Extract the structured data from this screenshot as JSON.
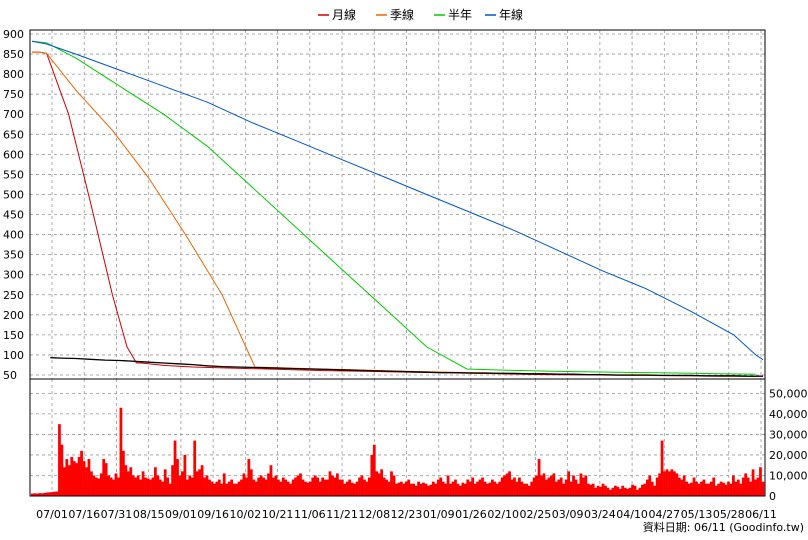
{
  "chart_data": {
    "type": "line",
    "legend": {
      "placement": "top-center",
      "items": [
        {
          "name": "月線",
          "color": "#cc0000"
        },
        {
          "name": "季線",
          "color": "#ee6600"
        },
        {
          "name": "半年",
          "color": "#00cc00"
        },
        {
          "name": "年線",
          "color": "#0055cc"
        }
      ]
    },
    "x_tick_labels": [
      "07/01",
      "07/16",
      "07/31",
      "08/15",
      "09/01",
      "09/16",
      "10/02",
      "10/21",
      "11/06",
      "11/21",
      "12/08",
      "12/23",
      "01/09",
      "01/26",
      "02/10",
      "02/25",
      "03/09",
      "03/24",
      "04/10",
      "04/27",
      "05/13",
      "05/28",
      "06/11"
    ],
    "price_axis": {
      "ticks": [
        "900",
        "850",
        "800",
        "750",
        "700",
        "650",
        "600",
        "550",
        "500",
        "450",
        "400",
        "350",
        "300",
        "250",
        "200",
        "150",
        "100",
        "50"
      ],
      "ylim": [
        40,
        910
      ],
      "grid": true
    },
    "volume_axis": {
      "ticks": [
        "50,000",
        "40,000",
        "30,000",
        "20,000",
        "10,000",
        "0"
      ],
      "ylim": [
        0,
        57000
      ],
      "grid": true
    },
    "series": [
      {
        "name": "月線",
        "color": "#cc0000",
        "points": [
          [
            0,
            855
          ],
          [
            1,
            855
          ],
          [
            2,
            852
          ],
          [
            5,
            700
          ],
          [
            8,
            480
          ],
          [
            11,
            250
          ],
          [
            13,
            120
          ],
          [
            14.3,
            80
          ],
          [
            15,
            80
          ],
          [
            18,
            74
          ],
          [
            22,
            70
          ],
          [
            28,
            67
          ],
          [
            34,
            64
          ],
          [
            40,
            61
          ],
          [
            46,
            59
          ],
          [
            52,
            57
          ],
          [
            58,
            55
          ],
          [
            64,
            53
          ],
          [
            70,
            51
          ],
          [
            76,
            50
          ],
          [
            82,
            49
          ],
          [
            88,
            48
          ],
          [
            94,
            47
          ],
          [
            99,
            47
          ]
        ]
      },
      {
        "name": "季線",
        "color": "#ee6600",
        "points": [
          [
            0,
            855
          ],
          [
            1,
            855
          ],
          [
            2,
            852
          ],
          [
            6,
            760
          ],
          [
            11,
            660
          ],
          [
            16,
            540
          ],
          [
            21,
            400
          ],
          [
            26,
            250
          ],
          [
            30.5,
            70
          ],
          [
            36,
            67
          ],
          [
            42,
            64
          ],
          [
            48,
            61
          ],
          [
            54,
            58
          ],
          [
            60,
            56
          ],
          [
            66,
            54
          ],
          [
            72,
            52
          ],
          [
            78,
            50
          ],
          [
            84,
            49
          ],
          [
            90,
            48
          ],
          [
            96,
            47
          ],
          [
            99,
            47
          ]
        ]
      },
      {
        "name": "半年",
        "color": "#00cc00",
        "points": [
          [
            0,
            882
          ],
          [
            2,
            878
          ],
          [
            6,
            840
          ],
          [
            12,
            770
          ],
          [
            18,
            700
          ],
          [
            24,
            620
          ],
          [
            30,
            520
          ],
          [
            36,
            420
          ],
          [
            42,
            320
          ],
          [
            48,
            220
          ],
          [
            54,
            120
          ],
          [
            59.5,
            65
          ],
          [
            65,
            62
          ],
          [
            72,
            59
          ],
          [
            80,
            57
          ],
          [
            88,
            55
          ],
          [
            94,
            53
          ],
          [
            99,
            52
          ]
        ]
      },
      {
        "name": "年線",
        "color": "#0055cc",
        "points": [
          [
            0,
            882
          ],
          [
            2,
            875
          ],
          [
            6,
            850
          ],
          [
            12,
            810
          ],
          [
            18,
            770
          ],
          [
            24,
            730
          ],
          [
            30,
            680
          ],
          [
            36,
            635
          ],
          [
            42,
            590
          ],
          [
            48,
            545
          ],
          [
            54,
            500
          ],
          [
            60,
            455
          ],
          [
            66,
            410
          ],
          [
            72,
            360
          ],
          [
            78,
            310
          ],
          [
            84,
            265
          ],
          [
            90,
            210
          ],
          [
            96,
            150
          ],
          [
            99,
            100
          ],
          [
            100,
            88
          ]
        ]
      },
      {
        "name": "",
        "color": "#000000",
        "points": [
          [
            2.5,
            93
          ],
          [
            4,
            92
          ],
          [
            6,
            91
          ],
          [
            8,
            89
          ],
          [
            10,
            87
          ],
          [
            12,
            86
          ],
          [
            14,
            84
          ],
          [
            16,
            82
          ],
          [
            18,
            80
          ],
          [
            20,
            78
          ],
          [
            22,
            76
          ],
          [
            24,
            73
          ],
          [
            26,
            71
          ],
          [
            28,
            70
          ],
          [
            30,
            69
          ],
          [
            32,
            68
          ],
          [
            34,
            67
          ],
          [
            36,
            66
          ],
          [
            38,
            65
          ],
          [
            40,
            64
          ],
          [
            42,
            63
          ],
          [
            44,
            62
          ],
          [
            46,
            61
          ],
          [
            48,
            60
          ],
          [
            50,
            59
          ],
          [
            52,
            58
          ],
          [
            54,
            57
          ],
          [
            56,
            56
          ],
          [
            58,
            56
          ],
          [
            60,
            55
          ],
          [
            62,
            55
          ],
          [
            64,
            54
          ],
          [
            66,
            54
          ],
          [
            68,
            53
          ],
          [
            70,
            53
          ],
          [
            72,
            52
          ],
          [
            74,
            52
          ],
          [
            76,
            51
          ],
          [
            78,
            51
          ],
          [
            80,
            50
          ],
          [
            82,
            50
          ],
          [
            84,
            50
          ],
          [
            86,
            49
          ],
          [
            88,
            49
          ],
          [
            90,
            49
          ],
          [
            92,
            48
          ],
          [
            94,
            48
          ],
          [
            96,
            48
          ],
          [
            98,
            47
          ],
          [
            100,
            47
          ]
        ]
      }
    ],
    "volume": [
      1200,
      1300,
      1200,
      1400,
      1300,
      1500,
      1700,
      1800,
      1900,
      2100,
      2200,
      35000,
      25000,
      14000,
      18000,
      15000,
      19000,
      17000,
      16000,
      19000,
      22000,
      17000,
      14000,
      18000,
      12000,
      10000,
      9000,
      8500,
      11000,
      18000,
      16000,
      10000,
      9000,
      8000,
      11000,
      9000,
      43000,
      22000,
      15000,
      12000,
      14000,
      10000,
      9000,
      10000,
      8000,
      12000,
      9000,
      8500,
      8000,
      9000,
      14000,
      10000,
      8000,
      7000,
      13000,
      9000,
      6000,
      15000,
      27000,
      18000,
      10000,
      12000,
      20000,
      8000,
      10000,
      9000,
      27000,
      12000,
      13000,
      15000,
      9000,
      10000,
      8000,
      7000,
      6000,
      7000,
      8000,
      6000,
      11000,
      6000,
      7000,
      8000,
      6000,
      6000,
      7000,
      8000,
      11000,
      9000,
      18000,
      13000,
      8000,
      7000,
      9000,
      10000,
      9000,
      8000,
      11000,
      15000,
      9000,
      10000,
      8000,
      7000,
      9000,
      8000,
      7000,
      6000,
      8000,
      9000,
      10000,
      11000,
      8000,
      7000,
      6500,
      7000,
      9000,
      10000,
      9000,
      7000,
      9000,
      8000,
      8000,
      12000,
      10000,
      9000,
      11000,
      8000,
      8000,
      6000,
      7000,
      8000,
      6500,
      6000,
      7000,
      9000,
      10000,
      8000,
      7000,
      9000,
      20000,
      25000,
      12000,
      11000,
      13000,
      9000,
      8000,
      7000,
      12000,
      10000,
      6000,
      6500,
      7000,
      6000,
      7000,
      8000,
      6000,
      6000,
      5000,
      7000,
      6000,
      6500,
      6000,
      5000,
      5500,
      7000,
      6000,
      8000,
      9000,
      7000,
      6000,
      10000,
      6000,
      7000,
      8000,
      6000,
      5000,
      6500,
      6000,
      8000,
      7000,
      9000,
      6000,
      7000,
      8000,
      9000,
      7000,
      6000,
      6500,
      8000,
      7000,
      6000,
      7000,
      9000,
      10000,
      11000,
      12000,
      8000,
      9000,
      7000,
      9000,
      7000,
      6000,
      6000,
      5000,
      7000,
      9000,
      10000,
      18000,
      10000,
      11000,
      8000,
      9000,
      10000,
      11000,
      7000,
      8000,
      9000,
      6000,
      8000,
      12000,
      7000,
      10000,
      8000,
      6000,
      11000,
      9000,
      10000,
      6000,
      5500,
      6000,
      4000,
      5000,
      4500,
      6000,
      5000,
      4000,
      3000,
      4000,
      5000,
      4500,
      3500,
      5000,
      4000,
      3500,
      4000,
      5500,
      5000,
      3000,
      4000,
      5500,
      6000,
      8000,
      10000,
      7000,
      5000,
      9000,
      11000,
      27000,
      12000,
      13000,
      12000,
      13000,
      12000,
      11000,
      9000,
      8000,
      10000,
      7000,
      6000,
      6500,
      9000,
      7000,
      6000,
      7000,
      8000,
      6000,
      6000,
      7000,
      9000,
      5000,
      6000,
      7000,
      6500,
      5500,
      7000,
      6000,
      10000,
      7000,
      8000,
      6000,
      9000,
      11000,
      9000,
      7000,
      13000,
      8000,
      9000,
      14000,
      7000
    ]
  },
  "footer": "資料日期: 06/11  (Goodinfo.tw)"
}
